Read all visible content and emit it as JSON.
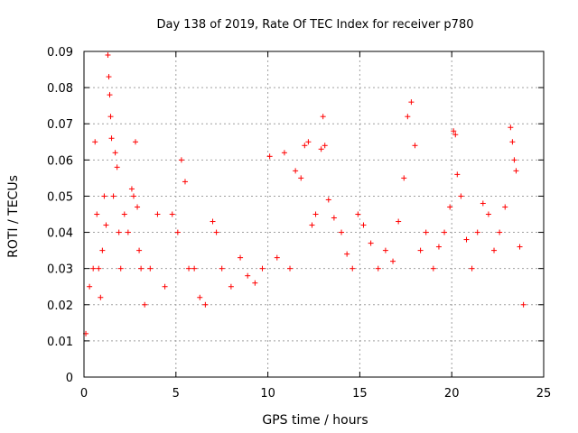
{
  "chart_data": {
    "type": "scatter",
    "title": "Day 138 of 2019, Rate Of TEC Index for receiver p780",
    "xlabel": "GPS time / hours",
    "ylabel": "ROTI / TECUs",
    "xlim": [
      0,
      25
    ],
    "ylim": [
      0,
      0.09
    ],
    "xticks": [
      "0",
      "5",
      "10",
      "15",
      "20",
      "25"
    ],
    "yticks": [
      "0",
      "0.01",
      "0.02",
      "0.03",
      "0.04",
      "0.05",
      "0.06",
      "0.07",
      "0.08",
      "0.09"
    ],
    "grid": true,
    "marker": "plus",
    "color": "#ff0000",
    "series": [
      {
        "x": [
          0.1,
          0.3,
          0.5,
          0.6,
          0.7,
          0.8,
          0.9,
          1.0,
          1.1,
          1.2,
          1.3,
          1.35,
          1.4,
          1.45,
          1.5,
          1.6,
          1.7,
          1.8,
          1.9,
          2.0,
          2.2,
          2.4,
          2.6,
          2.7,
          2.8,
          2.9,
          3.0,
          3.1,
          3.3,
          3.6,
          4.0,
          4.4,
          4.8,
          5.1,
          5.3,
          5.5,
          5.7,
          6.0,
          6.3,
          6.6,
          7.0,
          7.2,
          7.5,
          8.0,
          8.5,
          8.9,
          9.3,
          9.7,
          10.1,
          10.5,
          10.9,
          11.2,
          11.5,
          11.8,
          12.0,
          12.2,
          12.4,
          12.6,
          12.9,
          13.0,
          13.1,
          13.3,
          13.6,
          14.0,
          14.3,
          14.6,
          14.9,
          15.2,
          15.6,
          16.0,
          16.4,
          16.8,
          17.1,
          17.4,
          17.6,
          17.8,
          18.0,
          18.3,
          18.6,
          19.0,
          19.3,
          19.6,
          19.9,
          20.1,
          20.2,
          20.3,
          20.5,
          20.8,
          21.1,
          21.4,
          21.7,
          22.0,
          22.3,
          22.6,
          22.9,
          23.2,
          23.3,
          23.4,
          23.5,
          23.7,
          23.9
        ],
        "y": [
          0.012,
          0.025,
          0.03,
          0.065,
          0.045,
          0.03,
          0.022,
          0.035,
          0.05,
          0.042,
          0.089,
          0.083,
          0.078,
          0.072,
          0.066,
          0.05,
          0.062,
          0.058,
          0.04,
          0.03,
          0.045,
          0.04,
          0.052,
          0.05,
          0.065,
          0.047,
          0.035,
          0.03,
          0.02,
          0.03,
          0.045,
          0.025,
          0.045,
          0.04,
          0.06,
          0.054,
          0.03,
          0.03,
          0.022,
          0.02,
          0.043,
          0.04,
          0.03,
          0.025,
          0.033,
          0.028,
          0.026,
          0.03,
          0.061,
          0.033,
          0.062,
          0.03,
          0.057,
          0.055,
          0.064,
          0.065,
          0.042,
          0.045,
          0.063,
          0.072,
          0.064,
          0.049,
          0.044,
          0.04,
          0.034,
          0.03,
          0.045,
          0.042,
          0.037,
          0.03,
          0.035,
          0.032,
          0.043,
          0.055,
          0.072,
          0.076,
          0.064,
          0.035,
          0.04,
          0.03,
          0.036,
          0.04,
          0.047,
          0.068,
          0.067,
          0.056,
          0.05,
          0.038,
          0.03,
          0.04,
          0.048,
          0.045,
          0.035,
          0.04,
          0.047,
          0.069,
          0.065,
          0.06,
          0.057,
          0.036,
          0.02
        ]
      }
    ]
  }
}
